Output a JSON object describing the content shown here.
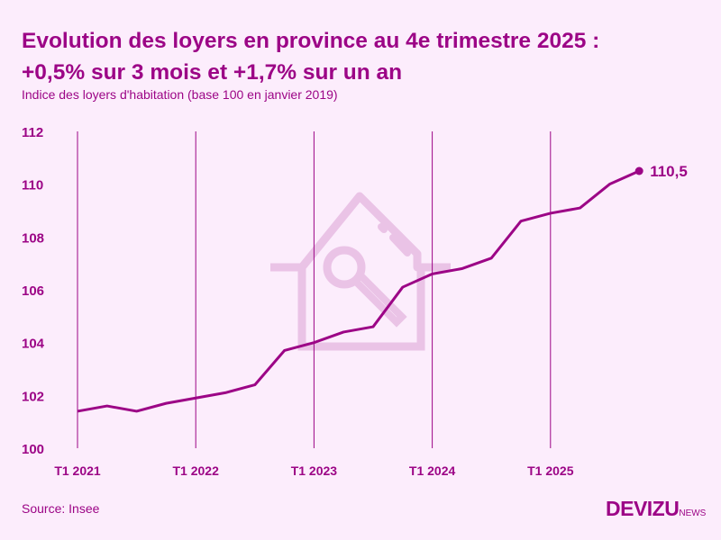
{
  "title_line1": "Evolution des loyers en province au 4e trimestre 2025 :",
  "title_line2": "+0,5% sur 3 mois et +1,7% sur un an",
  "subtitle": "Indice des loyers d'habitation (base 100 en janvier 2019)",
  "source": "Source: Insee",
  "logo": {
    "main": "DEVIZU",
    "sub": "NEWS"
  },
  "colors": {
    "line": "#9c0586",
    "background": "#fcedfc",
    "watermark": "#eac3e6"
  },
  "watermark_icon": "house-key-icon",
  "chart_data": {
    "type": "line",
    "title": "Evolution des loyers en province au 4e trimestre 2025 : +0,5% sur 3 mois et +1,7% sur un an",
    "subtitle": "Indice des loyers d'habitation (base 100 en janvier 2019)",
    "x": [
      "T1 2021",
      "T2 2021",
      "T3 2021",
      "T4 2021",
      "T1 2022",
      "T2 2022",
      "T3 2022",
      "T4 2022",
      "T1 2023",
      "T2 2023",
      "T3 2023",
      "T4 2023",
      "T1 2024",
      "T2 2024",
      "T3 2024",
      "T4 2024",
      "T1 2025",
      "T2 2025",
      "T3 2025",
      "T4 2025"
    ],
    "values": [
      101.4,
      101.6,
      101.4,
      101.7,
      101.9,
      102.1,
      102.4,
      103.7,
      104.0,
      104.4,
      104.6,
      106.1,
      106.6,
      106.8,
      107.2,
      108.6,
      108.9,
      109.1,
      110.0,
      110.5
    ],
    "ylim": [
      100,
      112
    ],
    "yticks": [
      "100",
      "102",
      "104",
      "106",
      "108",
      "110",
      "112"
    ],
    "xticks": [
      "T1 2021",
      "T1 2022",
      "T1 2023",
      "T1 2024",
      "T1 2025"
    ],
    "end_label": "110,5",
    "grid": "vertical lines at each T1"
  }
}
